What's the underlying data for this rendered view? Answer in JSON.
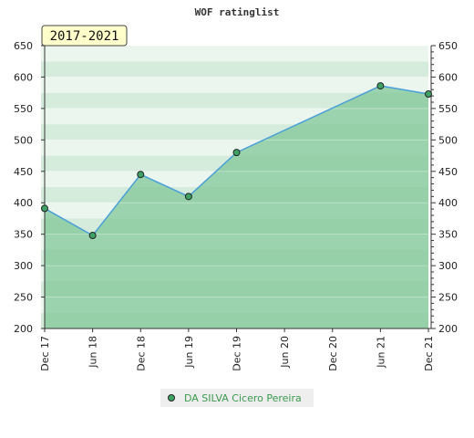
{
  "chart_data": {
    "type": "area",
    "title": "WOF ratinglist",
    "period_badge": "2017-2021",
    "categories": [
      "Dec 17",
      "Jun 18",
      "Dec 18",
      "Jun 19",
      "Dec 19",
      "Jun 20",
      "Dec 20",
      "Jun 21",
      "Dec 21"
    ],
    "series": [
      {
        "name": "DA SILVA Cicero Pereira",
        "points": [
          {
            "x": "Dec 17",
            "y": 391
          },
          {
            "x": "Jun 18",
            "y": 348
          },
          {
            "x": "Dec 18",
            "y": 445
          },
          {
            "x": "Jun 19",
            "y": 410
          },
          {
            "x": "Dec 19",
            "y": 480
          },
          {
            "x": "Jun 21",
            "y": 586
          },
          {
            "x": "Dec 21",
            "y": 573
          }
        ]
      }
    ],
    "ylim": [
      200,
      650
    ],
    "yticks": [
      200,
      250,
      300,
      350,
      400,
      450,
      500,
      550,
      600,
      650
    ],
    "grid": true,
    "legend_position": "bottom-center",
    "colors": {
      "line": "#4a9fd8",
      "area": "#7fc797",
      "marker": "#3fa265",
      "legend_text": "#3a9a4e",
      "badge_bg": "#ffffcc"
    }
  }
}
